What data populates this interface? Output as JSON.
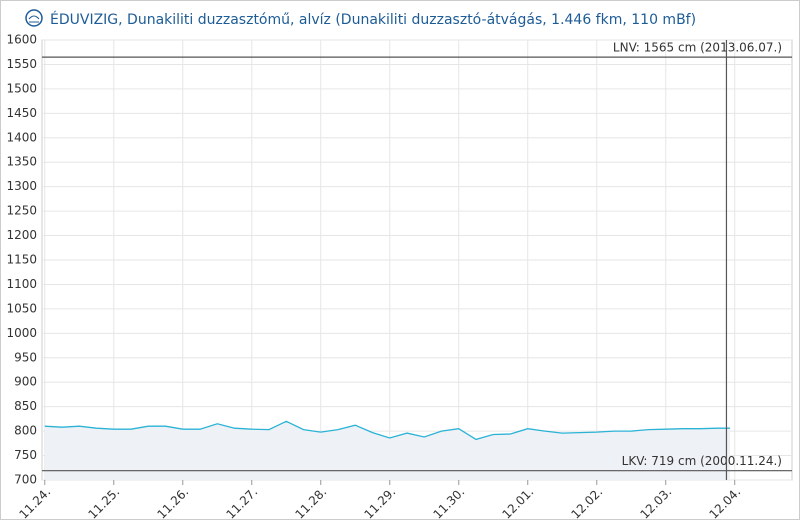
{
  "chart_data": {
    "type": "area",
    "title": "ÉDUVIZIG, Dunakiliti duzzasztómű, alvíz (Dunakiliti duzzasztó-átvágás, 1.446 fkm, 110 mBf)",
    "color": "#2bb3d6",
    "fill_color": "#eef1f6",
    "grid": true,
    "xlim": [
      -0.04,
      10.83
    ],
    "xticks": [
      {
        "value": 0,
        "label": "11.24."
      },
      {
        "value": 1,
        "label": "11.25."
      },
      {
        "value": 2,
        "label": "11.26."
      },
      {
        "value": 3,
        "label": "11.27."
      },
      {
        "value": 4,
        "label": "11.28."
      },
      {
        "value": 5,
        "label": "11.29."
      },
      {
        "value": 6,
        "label": "11.30."
      },
      {
        "value": 7,
        "label": "12.01."
      },
      {
        "value": 8,
        "label": "12.02."
      },
      {
        "value": 9,
        "label": "12.03."
      },
      {
        "value": 10,
        "label": "12.04."
      }
    ],
    "ylim": [
      700,
      1600
    ],
    "yticks": [
      700,
      750,
      800,
      850,
      900,
      950,
      1000,
      1050,
      1100,
      1150,
      1200,
      1250,
      1300,
      1350,
      1400,
      1450,
      1500,
      1550,
      1600
    ],
    "x": [
      0,
      0.25,
      0.5,
      0.75,
      1,
      1.25,
      1.5,
      1.75,
      2,
      2.25,
      2.5,
      2.75,
      3,
      3.25,
      3.5,
      3.75,
      4,
      4.25,
      4.5,
      4.75,
      5,
      5.25,
      5.5,
      5.75,
      6,
      6.25,
      6.5,
      6.75,
      7,
      7.25,
      7.5,
      7.75,
      8,
      8.25,
      8.5,
      8.75,
      9,
      9.25,
      9.5,
      9.75,
      9.93
    ],
    "values": [
      810,
      808,
      810,
      806,
      804,
      804,
      810,
      810,
      804,
      804,
      815,
      806,
      804,
      803,
      820,
      803,
      798,
      803,
      812,
      797,
      786,
      796,
      788,
      800,
      805,
      783,
      793,
      794,
      805,
      800,
      796,
      797,
      798,
      800,
      800,
      803,
      804,
      805,
      805,
      806,
      806
    ],
    "reference_lines": [
      {
        "value": 1565,
        "label": "LNV: 1565 cm (2013.06.07.)"
      },
      {
        "value": 719,
        "label": "LKV: 719 cm (2000.11.24.)"
      }
    ],
    "current_time_x": 9.88
  }
}
